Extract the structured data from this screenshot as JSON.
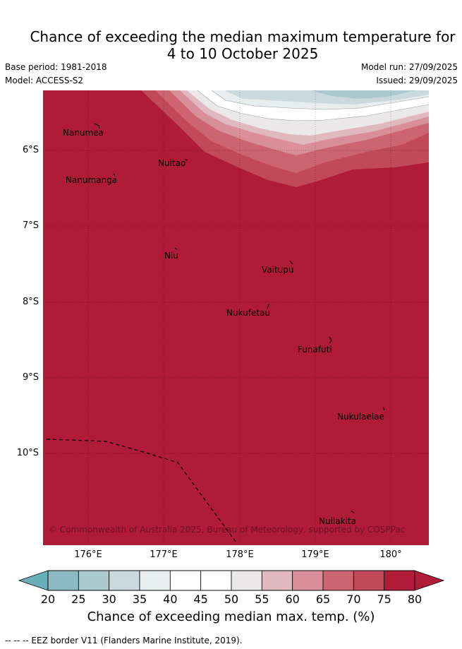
{
  "title_line1": "Chance of exceeding the median maximum temperature for",
  "title_line2": "4 to 10 October 2025",
  "base_period": "Base period: 1981-2018",
  "model": "Model: ACCESS-S2",
  "model_run": "Model run: 27/09/2025",
  "issued": "Issued: 29/09/2025",
  "copyright": "© Commonwealth of Australia 2025, Bureau of Meteorology, supported by COSPPac",
  "islands": [
    "Nanumea",
    "Nuitao",
    "Nanumanga",
    "Niu",
    "Vaitupu",
    "Nukufetau",
    "Funafuti",
    "Nukulaelae",
    "Nuilakita"
  ],
  "lat_labels": [
    "6°S",
    "7°S",
    "8°S",
    "9°S",
    "10°S"
  ],
  "lon_labels": [
    "176°E",
    "177°E",
    "178°E",
    "179°E",
    "180°"
  ],
  "colorbar": {
    "ticks": [
      "20",
      "25",
      "30",
      "35",
      "40",
      "45",
      "50",
      "55",
      "60",
      "65",
      "70",
      "75",
      "80"
    ],
    "colors": [
      "#6aaeb9",
      "#8bbac5",
      "#abc9cf",
      "#c9d9dd",
      "#e8eef0",
      "#ffffff",
      "#ffffff",
      "#ebe8ea",
      "#e0b9c0",
      "#d88f99",
      "#cc6570",
      "#c24a58",
      "#b01c37"
    ],
    "title": "Chance of exceeding median max. temp. (%)"
  },
  "eez_legend": "--  --  -- EEZ border V11 (Flanders Marine Institute, 2019)."
}
